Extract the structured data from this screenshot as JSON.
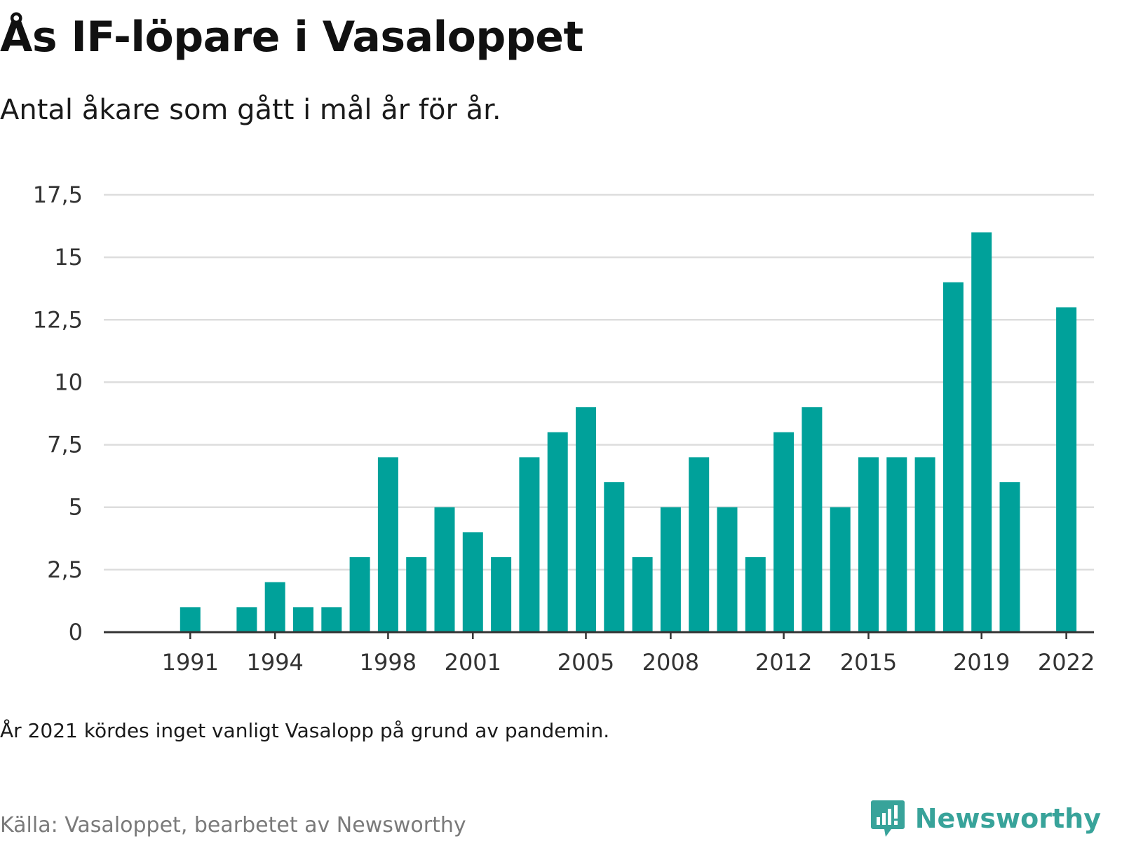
{
  "title": "Ås IF-löpare i Vasaloppet",
  "subtitle": "Antal åkare som gått i mål år för år.",
  "note": "År 2021 kördes inget vanligt Vasalopp på grund av pandemin.",
  "source": "Källa: Vasaloppet, bearbetet av Newsworthy",
  "brand": {
    "name": "Newsworthy",
    "icon": "newsworthy-logo-icon",
    "color": "#38a39a"
  },
  "colors": {
    "bar": "#00a19a",
    "grid": "#dddddd",
    "axis": "#333333"
  },
  "chart_data": {
    "type": "bar",
    "x": [
      1990,
      1991,
      1992,
      1993,
      1994,
      1995,
      1996,
      1997,
      1998,
      1999,
      2000,
      2001,
      2002,
      2003,
      2004,
      2005,
      2006,
      2007,
      2008,
      2009,
      2010,
      2011,
      2012,
      2013,
      2014,
      2015,
      2016,
      2017,
      2018,
      2019,
      2020,
      2021,
      2022
    ],
    "values": [
      0,
      1,
      0,
      1,
      2,
      1,
      1,
      3,
      7,
      3,
      5,
      4,
      3,
      7,
      8,
      9,
      6,
      3,
      5,
      7,
      5,
      3,
      8,
      9,
      5,
      7,
      7,
      7,
      14,
      16,
      6,
      0,
      13
    ],
    "x_tick_labels": [
      "1991",
      "1994",
      "1998",
      "2001",
      "2005",
      "2008",
      "2012",
      "2015",
      "2019",
      "2022"
    ],
    "y_ticks": [
      0,
      2.5,
      5,
      7.5,
      10,
      12.5,
      15,
      17.5
    ],
    "y_tick_labels": [
      "0",
      "2,5",
      "5",
      "7,5",
      "10",
      "12,5",
      "15",
      "17,5"
    ],
    "ylim": [
      0,
      17.5
    ],
    "grid": true,
    "legend": "none"
  }
}
